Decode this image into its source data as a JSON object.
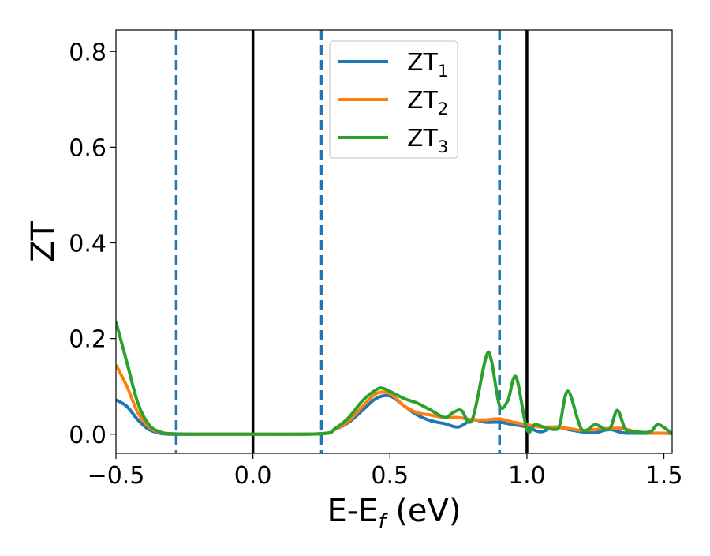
{
  "chart_data": {
    "type": "line",
    "xlabel": "E-E",
    "xlabel_sub": "f",
    "xlabel_unit": " (eV)",
    "ylabel": "ZT",
    "xlim": [
      -0.5,
      1.53
    ],
    "ylim": [
      -0.04,
      0.845
    ],
    "xticks": [
      -0.5,
      0.0,
      0.5,
      1.0,
      1.5
    ],
    "xtick_labels": [
      "−0.5",
      "0.0",
      "0.5",
      "1.0",
      "1.5"
    ],
    "yticks": [
      0.0,
      0.2,
      0.4,
      0.6,
      0.8
    ],
    "ytick_labels": [
      "0.0",
      "0.2",
      "0.4",
      "0.6",
      "0.8"
    ],
    "grid": false,
    "legend_position": "top-center",
    "vlines": [
      {
        "x": -0.28,
        "style": "dashed",
        "color": "#1f77b4"
      },
      {
        "x": 0.0,
        "style": "solid",
        "color": "#000000"
      },
      {
        "x": 0.25,
        "style": "dashed",
        "color": "#1f77b4"
      },
      {
        "x": 0.9,
        "style": "dashed",
        "color": "#1f77b4"
      },
      {
        "x": 1.0,
        "style": "solid",
        "color": "#000000"
      }
    ],
    "series": [
      {
        "name": "ZT",
        "name_sub": "1",
        "color": "#1f77b4",
        "x": [
          -0.5,
          -0.46,
          -0.42,
          -0.38,
          -0.34,
          -0.3,
          -0.2,
          0.0,
          0.25,
          0.3,
          0.35,
          0.4,
          0.45,
          0.5,
          0.55,
          0.6,
          0.65,
          0.7,
          0.75,
          0.8,
          0.85,
          0.9,
          0.95,
          1.0,
          1.05,
          1.1,
          1.15,
          1.2,
          1.25,
          1.3,
          1.35,
          1.4,
          1.45,
          1.5,
          1.53
        ],
        "y": [
          0.072,
          0.058,
          0.03,
          0.01,
          0.002,
          0.0,
          0.0,
          0.0,
          0.001,
          0.01,
          0.025,
          0.05,
          0.075,
          0.08,
          0.06,
          0.04,
          0.028,
          0.022,
          0.015,
          0.03,
          0.025,
          0.025,
          0.02,
          0.015,
          0.005,
          0.015,
          0.01,
          0.005,
          0.003,
          0.01,
          0.003,
          0.002,
          0.002,
          0.002,
          0.001
        ]
      },
      {
        "name": "ZT",
        "name_sub": "2",
        "color": "#ff7f0e",
        "x": [
          -0.5,
          -0.46,
          -0.42,
          -0.38,
          -0.34,
          -0.3,
          -0.2,
          0.0,
          0.25,
          0.3,
          0.35,
          0.4,
          0.45,
          0.5,
          0.55,
          0.6,
          0.65,
          0.7,
          0.75,
          0.8,
          0.85,
          0.9,
          0.95,
          1.0,
          1.05,
          1.1,
          1.15,
          1.2,
          1.25,
          1.3,
          1.35,
          1.4,
          1.45,
          1.5,
          1.53
        ],
        "y": [
          0.145,
          0.1,
          0.045,
          0.015,
          0.004,
          0.001,
          0.0,
          0.0,
          0.001,
          0.01,
          0.028,
          0.058,
          0.085,
          0.085,
          0.06,
          0.045,
          0.04,
          0.035,
          0.035,
          0.03,
          0.03,
          0.032,
          0.025,
          0.02,
          0.015,
          0.015,
          0.012,
          0.008,
          0.01,
          0.012,
          0.012,
          0.005,
          0.002,
          0.002,
          0.001
        ]
      },
      {
        "name": "ZT",
        "name_sub": "3",
        "color": "#2ca02c",
        "x": [
          -0.5,
          -0.46,
          -0.42,
          -0.38,
          -0.34,
          -0.3,
          -0.2,
          0.0,
          0.25,
          0.3,
          0.35,
          0.4,
          0.45,
          0.48,
          0.55,
          0.6,
          0.65,
          0.7,
          0.73,
          0.76,
          0.8,
          0.85,
          0.87,
          0.9,
          0.93,
          0.96,
          1.0,
          1.03,
          1.06,
          1.1,
          1.12,
          1.15,
          1.2,
          1.25,
          1.3,
          1.33,
          1.36,
          1.4,
          1.45,
          1.48,
          1.53
        ],
        "y": [
          0.235,
          0.15,
          0.065,
          0.02,
          0.005,
          0.001,
          0.0,
          0.0,
          0.001,
          0.012,
          0.035,
          0.07,
          0.093,
          0.095,
          0.075,
          0.065,
          0.05,
          0.035,
          0.045,
          0.05,
          0.03,
          0.16,
          0.155,
          0.06,
          0.07,
          0.12,
          0.01,
          0.02,
          0.015,
          0.01,
          0.02,
          0.09,
          0.01,
          0.02,
          0.01,
          0.05,
          0.01,
          0.005,
          0.005,
          0.02,
          0.001
        ]
      }
    ]
  }
}
